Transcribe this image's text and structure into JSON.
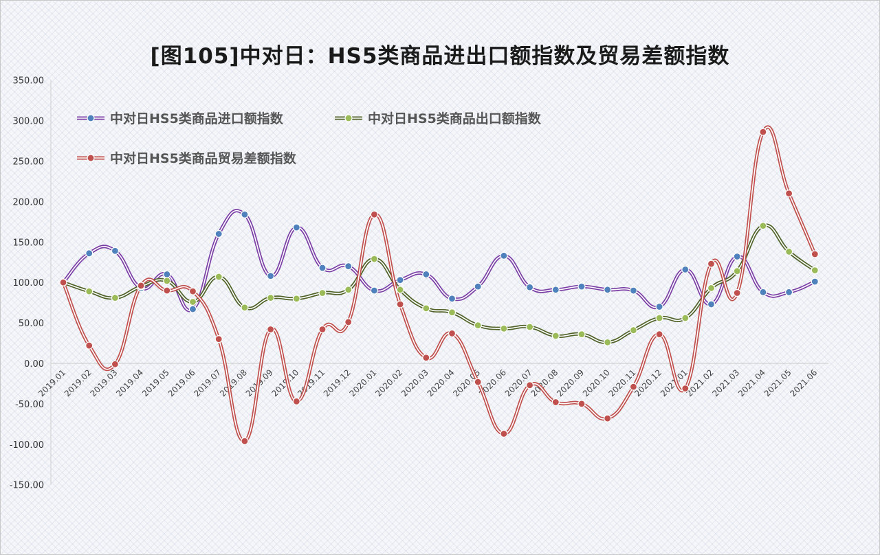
{
  "title": "[图105]中对日：HS5类商品进出口额指数及贸易差额指数",
  "chart_data": {
    "type": "line",
    "title": "[图105]中对日：HS5类商品进出口额指数及贸易差额指数",
    "xlabel": "",
    "ylabel": "",
    "ylim": [
      -150,
      350
    ],
    "y_ticks": [
      "350.00",
      "300.00",
      "250.00",
      "200.00",
      "150.00",
      "100.00",
      "50.00",
      "0.00",
      "-50.00",
      "-100.00",
      "-150.00"
    ],
    "grid": true,
    "legend_position": "top-left",
    "categories": [
      "2019.01",
      "2019.02",
      "2019.03",
      "2019.04",
      "2019.05",
      "2019.06",
      "2019.07",
      "2019.08",
      "2019.09",
      "2019.10",
      "2019.11",
      "2019.12",
      "2020.01",
      "2020.02",
      "2020.03",
      "2020.04",
      "2020.05",
      "2020.06",
      "2020.07",
      "2020.08",
      "2020.09",
      "2020.10",
      "2020.11",
      "2020.12",
      "2021.01",
      "2021.02",
      "2021.03",
      "2021.04",
      "2021.05",
      "2021.06"
    ],
    "series": [
      {
        "name": "中对日HS5类商品进口额指数",
        "color": "#7b3fa6",
        "marker": "#4f81bd",
        "values": [
          100,
          136,
          139,
          93,
          110,
          67,
          160,
          184,
          108,
          168,
          118,
          120,
          90,
          103,
          110,
          80,
          95,
          133,
          94,
          91,
          95,
          91,
          90,
          70,
          116,
          73,
          132,
          88,
          88,
          101
        ]
      },
      {
        "name": "中对日HS5类商品出口额指数",
        "color": "#4f6228",
        "marker": "#9bbb59",
        "values": [
          100,
          89,
          81,
          95,
          102,
          76,
          107,
          69,
          81,
          80,
          87,
          91,
          129,
          91,
          68,
          63,
          47,
          43,
          45,
          34,
          36,
          26,
          41,
          56,
          56,
          93,
          114,
          170,
          138,
          115
        ]
      },
      {
        "name": "中对日HS5类商品贸易差额指数",
        "color": "#c0504d",
        "marker": "#c0504d",
        "values": [
          100,
          22,
          -1,
          96,
          90,
          89,
          30,
          -96,
          42,
          -47,
          42,
          51,
          184,
          73,
          7,
          37,
          -23,
          -87,
          -27,
          -48,
          -50,
          -68,
          -29,
          36,
          -31,
          123,
          87,
          286,
          210,
          135
        ]
      }
    ]
  }
}
